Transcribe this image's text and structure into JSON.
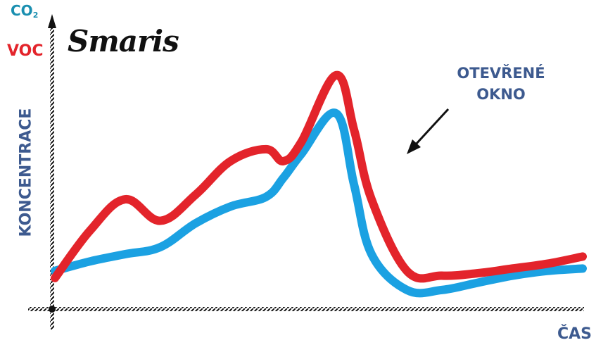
{
  "logo_text": "Smaris",
  "chart_data": {
    "type": "line",
    "title": "",
    "xlabel": "ČAS",
    "ylabel": "KONCENTRACE",
    "axis_top_labels": {
      "co2": "CO",
      "co2_subscript": "2",
      "voc": "VOC"
    },
    "x": [
      0,
      0.067,
      0.133,
      0.2,
      0.267,
      0.333,
      0.4,
      0.433,
      0.467,
      0.533,
      0.567,
      0.6,
      0.667,
      0.733,
      0.8,
      0.867,
      0.933,
      1.0
    ],
    "xlim": [
      0,
      1
    ],
    "ylim": [
      0,
      1
    ],
    "series": [
      {
        "name": "CO₂",
        "color": "#1ba1e2",
        "values": [
          0.16,
          0.2,
          0.23,
          0.26,
          0.36,
          0.43,
          0.47,
          0.55,
          0.65,
          0.82,
          0.52,
          0.23,
          0.08,
          0.08,
          0.11,
          0.14,
          0.16,
          0.17
        ]
      },
      {
        "name": "VOC",
        "color": "#e3242b",
        "values": [
          0.13,
          0.33,
          0.46,
          0.37,
          0.48,
          0.62,
          0.67,
          0.62,
          0.7,
          0.98,
          0.75,
          0.46,
          0.16,
          0.14,
          0.15,
          0.17,
          0.19,
          0.22
        ]
      }
    ],
    "annotation": {
      "line1": "OTEVŘENÉ",
      "line2": "OKNO",
      "points_to": "VOC drop after peak"
    },
    "colors": {
      "ylabel": "#3d5a8f",
      "xlabel": "#3d5a8f",
      "co2_label": "#1a8fb0",
      "voc_label": "#e3242b",
      "axis": "#111111"
    },
    "grid": false,
    "legend": "none"
  }
}
